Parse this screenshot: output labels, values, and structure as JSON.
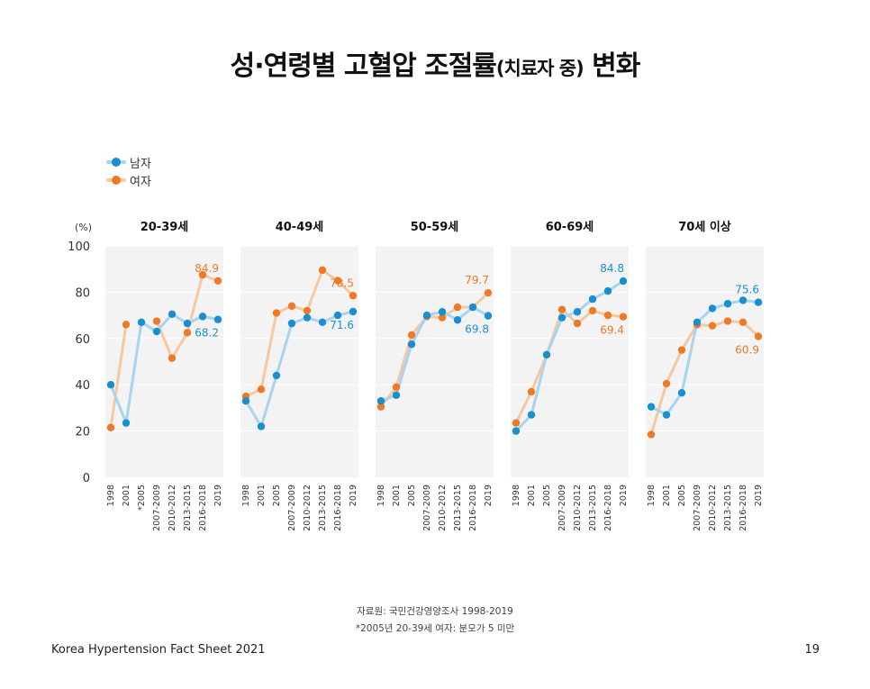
{
  "title": "성·연령별 고혈압 조절률",
  "title_sub": "(치료자 중)",
  "title_end": "변화",
  "colors": {
    "male": "#1a8fd0",
    "female": "#ec7a26",
    "male_line": "#a9d3ee",
    "female_line": "#f7c89f",
    "panel_bg": "#f3f3f3"
  },
  "chart_data": {
    "type": "line",
    "ylabel": "(%)",
    "ylim": [
      0,
      100
    ],
    "yticks": [
      0,
      20,
      40,
      60,
      80,
      100
    ],
    "legend": {
      "position": "top-left",
      "entries": [
        "남자",
        "여자"
      ]
    },
    "panels": [
      {
        "title": "20-39세",
        "categories": [
          "1998",
          "2001",
          "*2005",
          "2007-2009",
          "2010-2012",
          "2013-2015",
          "2016-2018",
          "2019"
        ],
        "series": [
          {
            "name": "남자",
            "values": [
              40.0,
              23.5,
              67.0,
              63.0,
              70.5,
              66.5,
              69.5,
              68.2
            ]
          },
          {
            "name": "여자",
            "values": [
              21.5,
              66.0,
              null,
              67.5,
              51.5,
              62.5,
              87.5,
              84.9
            ]
          }
        ],
        "labels": [
          {
            "series": "여자",
            "index": 7,
            "text": "84.9"
          },
          {
            "series": "남자",
            "index": 7,
            "text": "68.2"
          }
        ]
      },
      {
        "title": "40-49세",
        "categories": [
          "1998",
          "2001",
          "2005",
          "2007-2009",
          "2010-2012",
          "2013-2015",
          "2016-2018",
          "2019"
        ],
        "series": [
          {
            "name": "남자",
            "values": [
              33.0,
              22.0,
              44.0,
              66.5,
              69.0,
              67.0,
              70.0,
              71.6
            ]
          },
          {
            "name": "여자",
            "values": [
              35.0,
              38.0,
              71.0,
              74.0,
              72.0,
              89.5,
              85.0,
              78.5
            ]
          }
        ],
        "labels": [
          {
            "series": "여자",
            "index": 7,
            "text": "78.5"
          },
          {
            "series": "남자",
            "index": 7,
            "text": "71.6"
          }
        ]
      },
      {
        "title": "50-59세",
        "categories": [
          "1998",
          "2001",
          "2005",
          "2007-2009",
          "2010-2012",
          "2013-2015",
          "2016-2018",
          "2019"
        ],
        "series": [
          {
            "name": "남자",
            "values": [
              33.0,
              35.5,
              57.5,
              70.0,
              71.5,
              68.0,
              73.5,
              69.8
            ]
          },
          {
            "name": "여자",
            "values": [
              30.5,
              39.0,
              61.5,
              69.5,
              69.0,
              73.5,
              73.5,
              79.7
            ]
          }
        ],
        "labels": [
          {
            "series": "여자",
            "index": 7,
            "text": "79.7"
          },
          {
            "series": "남자",
            "index": 7,
            "text": "69.8"
          }
        ]
      },
      {
        "title": "60-69세",
        "categories": [
          "1998",
          "2001",
          "2005",
          "2007-2009",
          "2010-2012",
          "2013-2015",
          "2016-2018",
          "2019"
        ],
        "series": [
          {
            "name": "남자",
            "values": [
              20.0,
              27.0,
              53.0,
              69.0,
              71.5,
              77.0,
              80.5,
              84.8
            ]
          },
          {
            "name": "여자",
            "values": [
              23.5,
              37.0,
              53.0,
              72.5,
              66.5,
              72.0,
              70.0,
              69.4
            ]
          }
        ],
        "labels": [
          {
            "series": "남자",
            "index": 7,
            "text": "84.8"
          },
          {
            "series": "여자",
            "index": 7,
            "text": "69.4"
          }
        ]
      },
      {
        "title": "70세 이상",
        "categories": [
          "1998",
          "2001",
          "2005",
          "2007-2009",
          "2010-2012",
          "2013-2015",
          "2016-2018",
          "2019"
        ],
        "series": [
          {
            "name": "남자",
            "values": [
              30.5,
              27.0,
              36.5,
              67.0,
              73.0,
              75.0,
              76.5,
              75.6
            ]
          },
          {
            "name": "여자",
            "values": [
              18.5,
              40.5,
              55.0,
              66.0,
              65.5,
              67.5,
              67.0,
              60.9
            ]
          }
        ],
        "labels": [
          {
            "series": "남자",
            "index": 7,
            "text": "75.6"
          },
          {
            "series": "여자",
            "index": 7,
            "text": "60.9"
          }
        ]
      }
    ]
  },
  "source_line": "자료원: 국민건강영양조사 1998-2019",
  "note_line": "*2005년 20-39세 여자: 분모가 5 미만",
  "footer_left": "Korea Hypertension Fact Sheet 2021",
  "page_number": "19"
}
